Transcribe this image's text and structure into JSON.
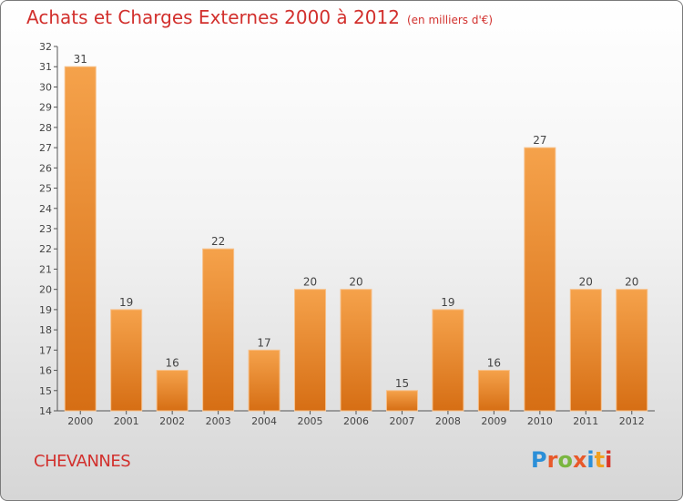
{
  "title": "Achats et Charges Externes 2000 à 2012",
  "unit": "(en milliers d'€)",
  "place": "CHEVANNES",
  "brand": [
    "P",
    "r",
    "o",
    "x",
    "i",
    "t",
    "i"
  ],
  "brand_colors": [
    "#2b8fd8",
    "#e8592a",
    "#7ab640",
    "#e8592a",
    "#2b8fd8",
    "#f0a020",
    "#d9362b"
  ],
  "colors": {
    "title": "#d2302d",
    "bar_top": "#f5a24b",
    "bar_bottom": "#d66e14",
    "axis": "#555555"
  },
  "chart_data": {
    "type": "bar",
    "categories": [
      "2000",
      "2001",
      "2002",
      "2003",
      "2004",
      "2005",
      "2006",
      "2007",
      "2008",
      "2009",
      "2010",
      "2011",
      "2012"
    ],
    "values": [
      31,
      19,
      16,
      22,
      17,
      20,
      20,
      15,
      19,
      16,
      27,
      20,
      20
    ],
    "ylim": [
      14,
      32
    ],
    "yticks": [
      14,
      15,
      16,
      17,
      18,
      19,
      20,
      21,
      22,
      23,
      24,
      25,
      26,
      27,
      28,
      29,
      30,
      31,
      32
    ],
    "grid": false
  }
}
